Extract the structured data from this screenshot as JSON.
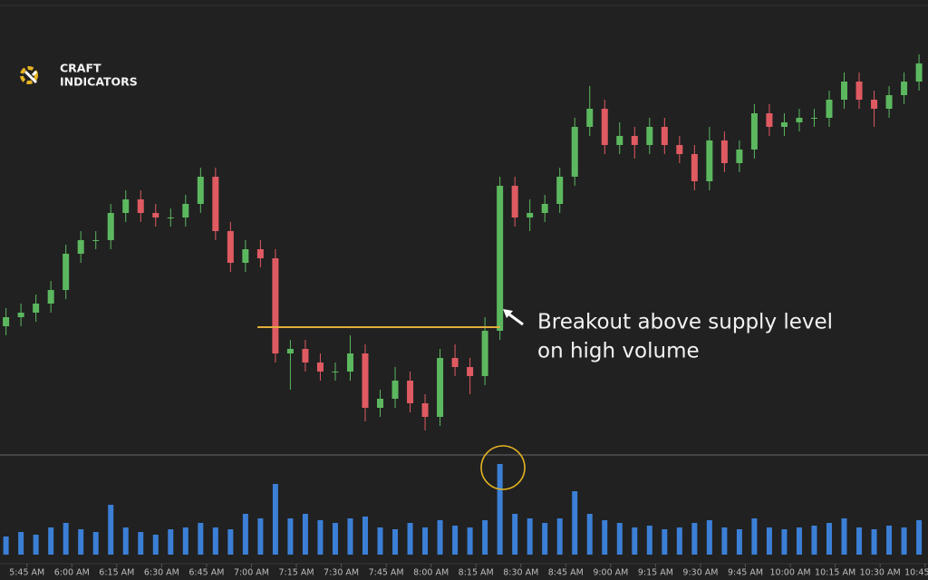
{
  "logo": [
    "CRAFT",
    "INDICATORS"
  ],
  "chart_data": {
    "type": "candlestick",
    "x": [
      338,
      343,
      348,
      353,
      358,
      363,
      368,
      373,
      378,
      383,
      388,
      393,
      398,
      403,
      408,
      413,
      418,
      423,
      428,
      433,
      438,
      443,
      448,
      453,
      458,
      463,
      468,
      473,
      478,
      483,
      488,
      493,
      498,
      503,
      508,
      513,
      518,
      523,
      528,
      533,
      538,
      543,
      548,
      553,
      558,
      563,
      568,
      573,
      578,
      583,
      588,
      593,
      598,
      603,
      608,
      613,
      618,
      623,
      628,
      633,
      638,
      643
    ],
    "open": [
      28,
      30,
      31,
      33,
      36,
      44,
      47,
      47,
      53,
      56,
      53,
      52,
      52,
      55,
      61,
      49,
      42,
      45,
      43,
      22,
      23,
      20,
      18,
      18,
      22,
      10,
      12,
      16,
      11,
      8,
      21,
      19,
      17,
      27,
      59,
      52,
      53,
      55,
      61,
      72,
      76,
      68,
      70,
      68,
      72,
      68,
      66,
      60,
      69,
      64,
      67,
      75,
      72,
      73,
      74,
      74,
      78,
      82,
      78,
      76,
      79,
      82
    ],
    "high": [
      32,
      33,
      35,
      38,
      46,
      49,
      49,
      55,
      58,
      58,
      55,
      54,
      57,
      63,
      63,
      51,
      47,
      47,
      45,
      25,
      25,
      22,
      20,
      26,
      24,
      14,
      19,
      18,
      13,
      23,
      24,
      21,
      30,
      61,
      61,
      56,
      57,
      63,
      74,
      81,
      78,
      73,
      72,
      74,
      74,
      70,
      68,
      72,
      71,
      69,
      77,
      77,
      75,
      76,
      76,
      80,
      84,
      84,
      80,
      81,
      84,
      88
    ],
    "low": [
      26,
      28,
      29,
      31,
      34,
      42,
      45,
      45,
      51,
      51,
      50,
      50,
      50,
      53,
      47,
      40,
      40,
      41,
      20,
      14,
      18,
      16,
      16,
      16,
      7,
      8,
      10,
      9,
      5,
      6,
      17,
      13,
      15,
      25,
      50,
      49,
      51,
      53,
      59,
      70,
      66,
      66,
      65,
      66,
      66,
      64,
      58,
      58,
      62,
      62,
      65,
      70,
      70,
      71,
      72,
      72,
      76,
      76,
      72,
      74,
      77,
      80
    ],
    "close": [
      30,
      31,
      33,
      36,
      44,
      47,
      47,
      53,
      56,
      53,
      52,
      52,
      55,
      61,
      49,
      42,
      45,
      43,
      22,
      23,
      20,
      18,
      18,
      22,
      10,
      12,
      16,
      11,
      8,
      21,
      19,
      17,
      27,
      59,
      52,
      53,
      55,
      61,
      72,
      76,
      68,
      70,
      68,
      72,
      68,
      66,
      60,
      69,
      64,
      67,
      75,
      72,
      73,
      74,
      74,
      78,
      82,
      78,
      76,
      79,
      82,
      86
    ],
    "up_color": "#5cb85f",
    "down_color": "#e05a62",
    "ylim": [
      0,
      100
    ],
    "xlim": [
      336,
      646
    ],
    "xticks": [
      {
        "value": 345,
        "label": "5:45 AM"
      },
      {
        "value": 360,
        "label": "6:00 AM"
      },
      {
        "value": 375,
        "label": "6:15 AM"
      },
      {
        "value": 390,
        "label": "6:30 AM"
      },
      {
        "value": 405,
        "label": "6:45 AM"
      },
      {
        "value": 420,
        "label": "7:00 AM"
      },
      {
        "value": 435,
        "label": "7:15 AM"
      },
      {
        "value": 450,
        "label": "7:30 AM"
      },
      {
        "value": 465,
        "label": "7:45 AM"
      },
      {
        "value": 480,
        "label": "8:00 AM"
      },
      {
        "value": 495,
        "label": "8:15 AM"
      },
      {
        "value": 510,
        "label": "8:30 AM"
      },
      {
        "value": 525,
        "label": "8:45 AM"
      },
      {
        "value": 540,
        "label": "9:00 AM"
      },
      {
        "value": 555,
        "label": "9:15 AM"
      },
      {
        "value": 570,
        "label": "9:30 AM"
      },
      {
        "value": 585,
        "label": "9:45 AM"
      },
      {
        "value": 600,
        "label": "10:00 AM"
      },
      {
        "value": 615,
        "label": "10:15 AM"
      },
      {
        "value": 630,
        "label": "10:30 AM"
      },
      {
        "value": 645,
        "label": "10:45 AM"
      }
    ],
    "volume": {
      "color": "#3b7fd6",
      "ylim": [
        0,
        110
      ],
      "values": [
        20,
        25,
        22,
        30,
        35,
        28,
        25,
        55,
        30,
        25,
        22,
        28,
        30,
        35,
        30,
        28,
        45,
        40,
        78,
        40,
        45,
        38,
        35,
        40,
        42,
        30,
        28,
        35,
        30,
        38,
        32,
        30,
        38,
        100,
        45,
        40,
        35,
        40,
        70,
        45,
        38,
        35,
        30,
        32,
        28,
        30,
        35,
        38,
        30,
        28,
        40,
        30,
        28,
        30,
        32,
        35,
        40,
        30,
        28,
        32,
        30,
        38
      ]
    },
    "supply_level": {
      "value": 27.8,
      "x": [
        422,
        503
      ],
      "color": "#e3ad3c"
    },
    "annotation": [
      "Breakout above supply level",
      "on high volume"
    ]
  }
}
